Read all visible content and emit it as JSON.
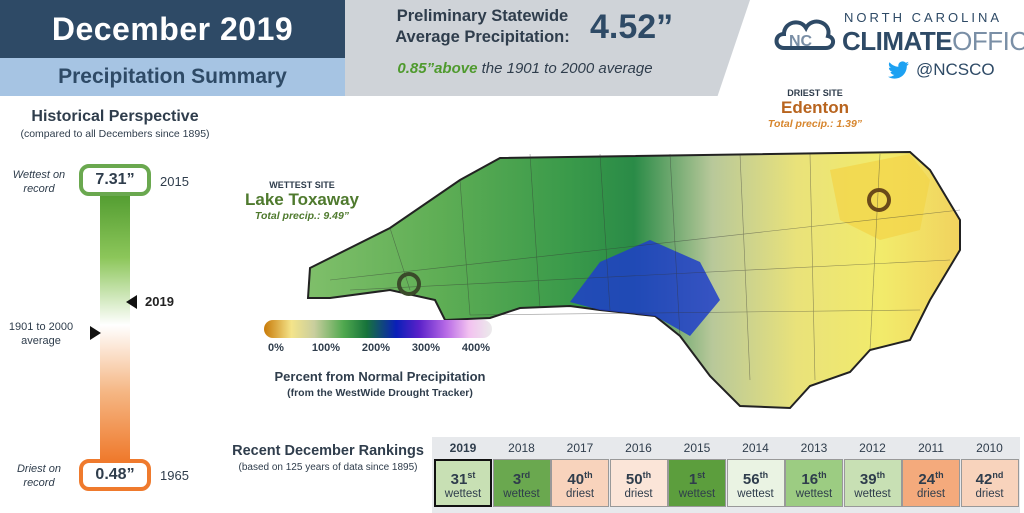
{
  "header": {
    "title": "December 2019",
    "subtitle": "Precipitation Summary",
    "statewide_label_line1": "Preliminary Statewide",
    "statewide_label_line2": "Average Precipitation:",
    "statewide_value": "4.52”",
    "diff_value": "0.85”above",
    "diff_rest": " the 1901 to 2000 average"
  },
  "logo": {
    "line1": "NORTH CAROLINA",
    "line2_bold": "CLIMATE",
    "line2_light": "OFFICE",
    "twitter_handle": "@NCSCO",
    "icon": "cloud-logo-icon"
  },
  "historical": {
    "title": "Historical Perspective",
    "subtitle": "(compared to all Decembers since 1895)",
    "wettest_label_line1": "Wettest on",
    "wettest_label_line2": "record",
    "wettest_value": "7.31”",
    "wettest_year": "2015",
    "avg_label_line1": "1901 to 2000",
    "avg_label_line2": "average",
    "current_year": "2019",
    "driest_label_line1": "Driest on",
    "driest_label_line2": "record",
    "driest_value": "0.48”",
    "driest_year": "1965",
    "current_level_pct": 41,
    "colors": {
      "wet": "#6aa84f",
      "dry": "#ef7a2d"
    }
  },
  "map": {
    "wettest_kicker": "WETTEST SITE",
    "wettest_name": "Lake Toxaway",
    "wettest_precip": "Total precip.: 9.49”",
    "driest_kicker": "DRIEST SITE",
    "driest_name": "Edenton",
    "driest_precip": "Total precip.: 1.39”",
    "legend_ticks": [
      "0%",
      "100%",
      "200%",
      "300%",
      "400%"
    ],
    "legend_title": "Percent from Normal Precipitation",
    "legend_sub": "(from the WestWide Drought Tracker)"
  },
  "rankings": {
    "title": "Recent December Rankings",
    "subtitle": "(based on 125 years of data since 1895)",
    "items": [
      {
        "year": "2019",
        "num": "31",
        "suffix": "st",
        "kind": "wettest",
        "color": "#c8e0b4",
        "current": true
      },
      {
        "year": "2018",
        "num": "3",
        "suffix": "rd",
        "kind": "wettest",
        "color": "#6aa84f"
      },
      {
        "year": "2017",
        "num": "40",
        "suffix": "th",
        "kind": "driest",
        "color": "#f8d3bc"
      },
      {
        "year": "2016",
        "num": "50",
        "suffix": "th",
        "kind": "driest",
        "color": "#fbe5d8"
      },
      {
        "year": "2015",
        "num": "1",
        "suffix": "st",
        "kind": "wettest",
        "color": "#5c9e3d"
      },
      {
        "year": "2014",
        "num": "56",
        "suffix": "th",
        "kind": "wettest",
        "color": "#eaf3e3"
      },
      {
        "year": "2013",
        "num": "16",
        "suffix": "th",
        "kind": "wettest",
        "color": "#9ccc82"
      },
      {
        "year": "2012",
        "num": "39",
        "suffix": "th",
        "kind": "wettest",
        "color": "#c8e0b4"
      },
      {
        "year": "2011",
        "num": "24",
        "suffix": "th",
        "kind": "driest",
        "color": "#f4aa7c"
      },
      {
        "year": "2010",
        "num": "42",
        "suffix": "nd",
        "kind": "driest",
        "color": "#f8d3bc"
      }
    ]
  }
}
